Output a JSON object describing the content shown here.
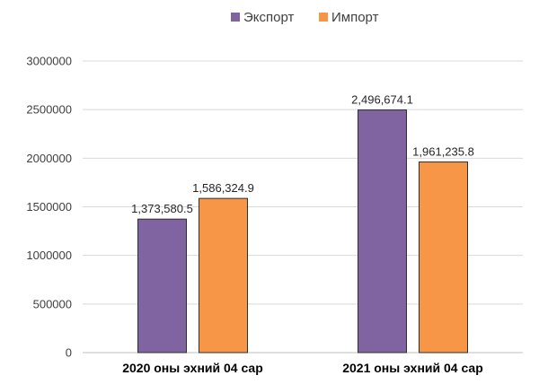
{
  "chart_data": {
    "type": "bar",
    "title": "",
    "xlabel": "",
    "ylabel": "",
    "categories": [
      "2020 оны эхний 04 сар",
      "2021 оны эхний 04 сар"
    ],
    "series": [
      {
        "name": "Экспорт",
        "values": [
          1373580.5,
          2496674.1
        ],
        "labels": [
          "1,373,580.5",
          "2,496,674.1"
        ],
        "color": "#8064a2"
      },
      {
        "name": "Импорт",
        "values": [
          1586324.9,
          1961235.8
        ],
        "labels": [
          "1,586,324.9",
          "1,961,235.8"
        ],
        "color": "#f79646"
      }
    ],
    "ylim": [
      0,
      3000000
    ],
    "yticks": [
      0,
      500000,
      1000000,
      1500000,
      2000000,
      2500000,
      3000000
    ],
    "ytick_labels": [
      "0",
      "500000",
      "1000000",
      "1500000",
      "2000000",
      "2500000",
      "3000000"
    ],
    "grid": true,
    "legend_position": "top-center"
  }
}
